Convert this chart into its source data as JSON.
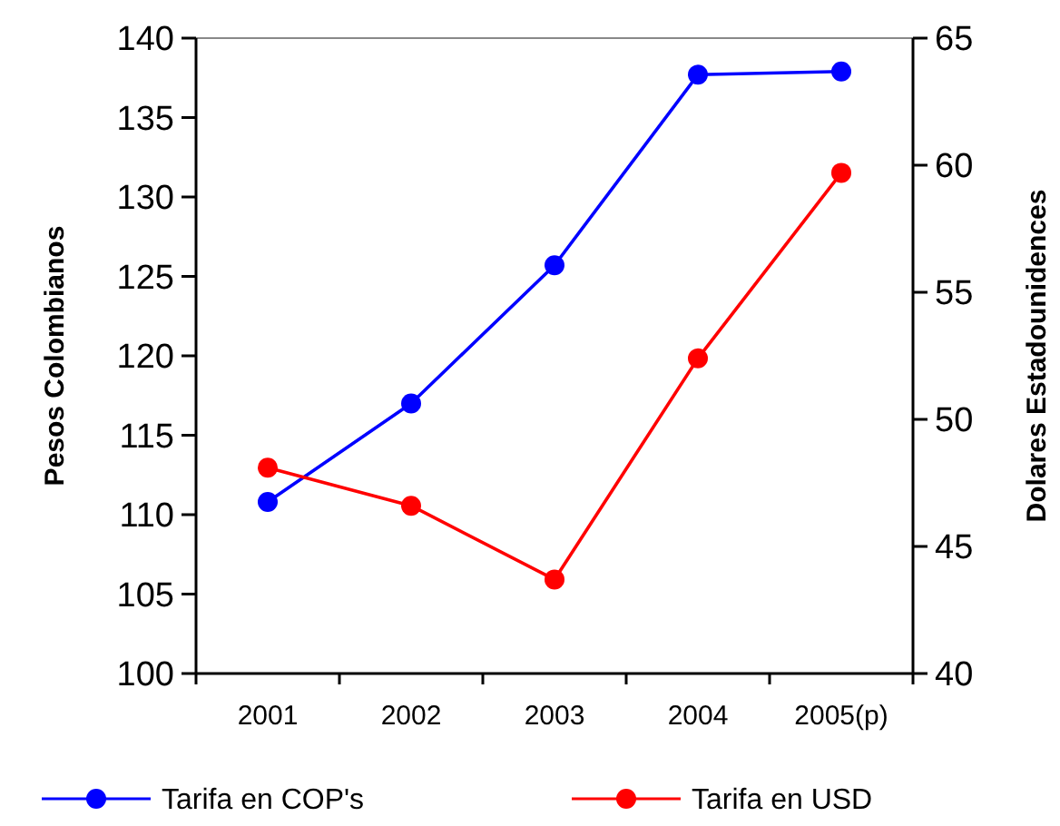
{
  "chart_data": {
    "type": "line",
    "ylabel": "Pesos Colombianos",
    "y2label": "Dolares Estadounidences",
    "categories": [
      "2001",
      "2002",
      "2003",
      "2004",
      "2005(p)"
    ],
    "series": [
      {
        "name": "Tarifa en COP's",
        "color": "#0000ff",
        "values": [
          110.8,
          117.0,
          125.7,
          137.7,
          137.9
        ]
      },
      {
        "name": "Tarifa en USD",
        "color": "#ff0000",
        "axis": "y2",
        "values": [
          48.1,
          46.6,
          43.7,
          52.4,
          59.7
        ]
      }
    ],
    "ylim": [
      100,
      140
    ],
    "yticks": [
      100,
      105,
      110,
      115,
      120,
      125,
      130,
      135,
      140
    ],
    "y2lim": [
      40,
      65
    ],
    "y2ticks": [
      40,
      45,
      50,
      55,
      60,
      65
    ],
    "marker": "circle",
    "legend": "bottom",
    "grid": false
  }
}
